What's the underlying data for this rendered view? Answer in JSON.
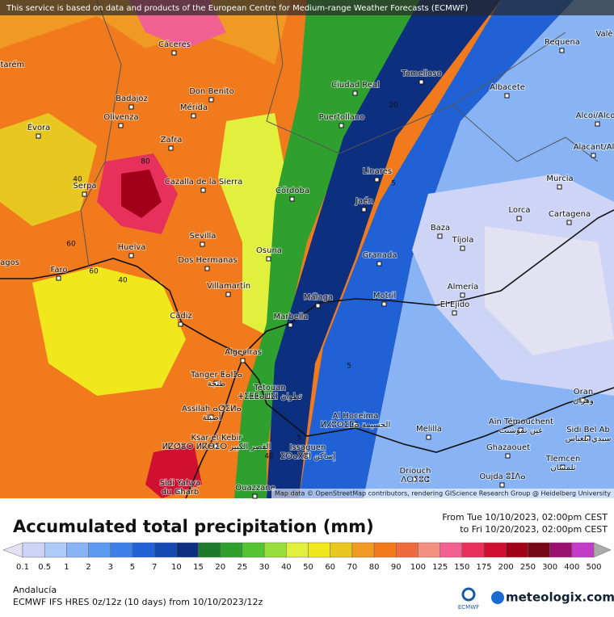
{
  "notice": "This service is based on data and products of the European Centre for Medium-range Weather Forecasts (ECMWF)",
  "attribution": "Map data © OpenStreetMap contributors, rendering GIScience Research Group @ Heidelberg University",
  "places": [
    {
      "name": "ltarém"
    },
    {
      "name": "Cáceres"
    },
    {
      "name": "Tomelloso"
    },
    {
      "name": "Requena"
    },
    {
      "name": "Valè"
    },
    {
      "name": "Ciudad Real"
    },
    {
      "name": "Albacete"
    },
    {
      "name": "Badajoz"
    },
    {
      "name": "Don Benito"
    },
    {
      "name": "Mérida"
    },
    {
      "name": "Olivenza"
    },
    {
      "name": "Puertollano"
    },
    {
      "name": "Alcoi/Alcoy"
    },
    {
      "name": "Évora"
    },
    {
      "name": "Zafra"
    },
    {
      "name": "Alacant/Al"
    },
    {
      "name": "Linares"
    },
    {
      "name": "Serpa"
    },
    {
      "name": "Cazalla de la Sierra"
    },
    {
      "name": "Córdoba"
    },
    {
      "name": "Jaén"
    },
    {
      "name": "Murcia"
    },
    {
      "name": "Lorca"
    },
    {
      "name": "Cartagena"
    },
    {
      "name": "Baza"
    },
    {
      "name": "Tíjola"
    },
    {
      "name": "Sevilla"
    },
    {
      "name": "Huelva"
    },
    {
      "name": "Osuna"
    },
    {
      "name": "Dos Hermanas"
    },
    {
      "name": "Granada"
    },
    {
      "name": "Faro"
    },
    {
      "name": "agos"
    },
    {
      "name": "Almería"
    },
    {
      "name": "Villamartín"
    },
    {
      "name": "Málaga"
    },
    {
      "name": "Motril"
    },
    {
      "name": "El Ejido"
    },
    {
      "name": "Cádiz"
    },
    {
      "name": "Marbella"
    },
    {
      "name": "Algeciras"
    },
    {
      "name": "Tanger ⵟⴰⵏⵊⴰ",
      "alt": "طنجة"
    },
    {
      "name": "Tetouan",
      "alt": "ⵜⵉⵟⵟⴰⵡⵉⵏ تطوان"
    },
    {
      "name": "Assilah ⴰⵚⵉⵍⴰ",
      "alt": "أصيلة"
    },
    {
      "name": "Oran",
      "alt": "وهران"
    },
    {
      "name": "Al Hoceima",
      "alt": "ⵍⵃⵓⵙⵉⵎⴰ الحسيمة"
    },
    {
      "name": "Aïn Témouchent",
      "alt": "عين تموشنت"
    },
    {
      "name": "Melilla"
    },
    {
      "name": "Sidi Bel Ab",
      "alt": "سيدي بلعباس"
    },
    {
      "name": "Ksar-el-Kebir",
      "alt": "ⵍⵇⵚⴻⵔ ⵍⴽⴱⵉⵔ القصر الكبير"
    },
    {
      "name": "Issaguen",
      "alt": "ⵉⵙⴰⴳⴻⵏ إساكن"
    },
    {
      "name": "Ghazaouet"
    },
    {
      "name": "Tlemcen",
      "alt": "تلمسان"
    },
    {
      "name": "Driouch",
      "alt": "ⴷⵔⵢⵓⵛ"
    },
    {
      "name": "Oujda ⵓⵊⴷⴰ"
    },
    {
      "name": "Sidi Yahya",
      "alt": "du Gharb"
    },
    {
      "name": "Ouazzane"
    }
  ],
  "contour_labels": [
    80,
    40,
    60,
    60,
    40,
    20,
    5,
    5,
    5,
    40
  ],
  "legend": {
    "title": "Accumulated total precipitation (mm)",
    "from": "From Tue 10/10/2023, 02:00pm CEST",
    "to": "to Fri 10/20/2023, 02:00pm CEST",
    "levels": [
      0.1,
      0.5,
      1,
      2,
      3,
      5,
      7,
      10,
      15,
      20,
      25,
      30,
      40,
      50,
      60,
      70,
      80,
      90,
      100,
      125,
      150,
      175,
      200,
      250,
      300,
      400,
      500
    ],
    "colors": [
      "#e2e2f2",
      "#cdd4f6",
      "#aecaf9",
      "#88b4f6",
      "#5e9af0",
      "#3d80e8",
      "#2062d6",
      "#1548b0",
      "#0c2f80",
      "#1d7a2a",
      "#2fa02e",
      "#54c430",
      "#98de3a",
      "#e0f03c",
      "#f0e81c",
      "#e8c820",
      "#f09a24",
      "#f07a1c",
      "#f06a40",
      "#f49080",
      "#f06090",
      "#e8305c",
      "#d01030",
      "#a00018",
      "#780818",
      "#9a1070",
      "#c23cc8",
      "#e0a0f0"
    ]
  },
  "footer": {
    "region": "Andalucía",
    "model": "ECMWF IFS HRES 0z/12z (10 days) from 10/10/2023/12z",
    "ecmwf": "ECMWF",
    "brand": "meteologix.com"
  }
}
